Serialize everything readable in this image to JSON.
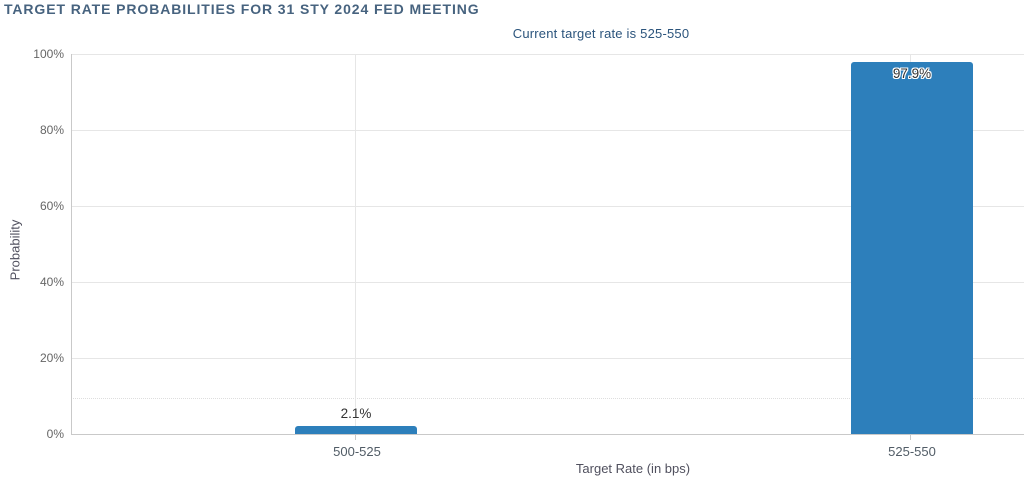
{
  "chart_data": {
    "type": "bar",
    "title": "TARGET RATE PROBABILITIES FOR 31 STY 2024 FED MEETING",
    "subtitle": "Current target rate is 525-550",
    "categories": [
      "500-525",
      "525-550"
    ],
    "values": [
      2.1,
      97.9
    ],
    "value_labels": [
      "2.1%",
      "97.9%"
    ],
    "xlabel": "Target Rate (in bps)",
    "ylabel": "Probability",
    "ylim": [
      0,
      100
    ],
    "ytick_interval": 20,
    "yticks": [
      "0%",
      "20%",
      "40%",
      "60%",
      "80%",
      "100%"
    ],
    "grid": true,
    "legend": false,
    "current_target_rate": "525-550",
    "colors": {
      "bar": "#2d7fbb",
      "title": "#47637f",
      "subtitle": "#2b547c",
      "axis_title": "#50505e",
      "tick_label": "#666666",
      "category_label": "#515c66",
      "data_label": "#333333",
      "gridline": "#e6e6e6",
      "axis_line": "#c9c9c9"
    }
  }
}
